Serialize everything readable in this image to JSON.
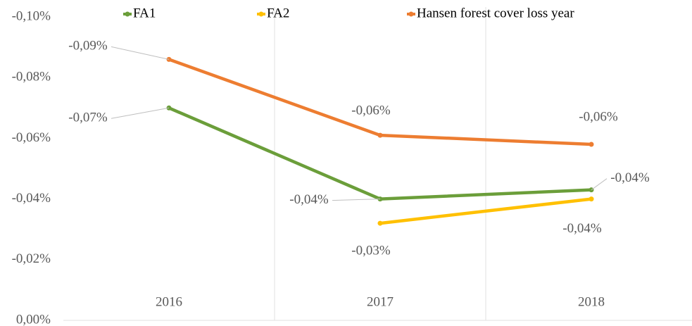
{
  "chart_data": {
    "type": "line",
    "categories": [
      "2016",
      "2017",
      "2018"
    ],
    "series": [
      {
        "name": "FA1",
        "color": "#6b9e3a",
        "values": [
          -0.07,
          -0.04,
          -0.043
        ],
        "value_labels": [
          "-0,07%",
          "-0,04%",
          "-0,04%"
        ]
      },
      {
        "name": "FA2",
        "color": "#ffc000",
        "values": [
          null,
          -0.032,
          -0.04
        ],
        "value_labels": [
          null,
          "-0,03%",
          "-0,04%"
        ]
      },
      {
        "name": "Hansen forest cover loss year",
        "color": "#ed7d31",
        "values": [
          -0.086,
          -0.061,
          -0.058
        ],
        "value_labels": [
          "-0,09%",
          "-0,06%",
          "-0,06%"
        ]
      }
    ],
    "ylim": [
      0,
      -0.1
    ],
    "yticks": [
      {
        "value": 0,
        "label": "0,00%"
      },
      {
        "value": -0.02,
        "label": "-0,02%"
      },
      {
        "value": -0.04,
        "label": "-0,04%"
      },
      {
        "value": -0.06,
        "label": "-0,06%"
      },
      {
        "value": -0.08,
        "label": "-0,08%"
      },
      {
        "value": -0.1,
        "label": "-0,10%"
      }
    ],
    "legend": "top"
  }
}
